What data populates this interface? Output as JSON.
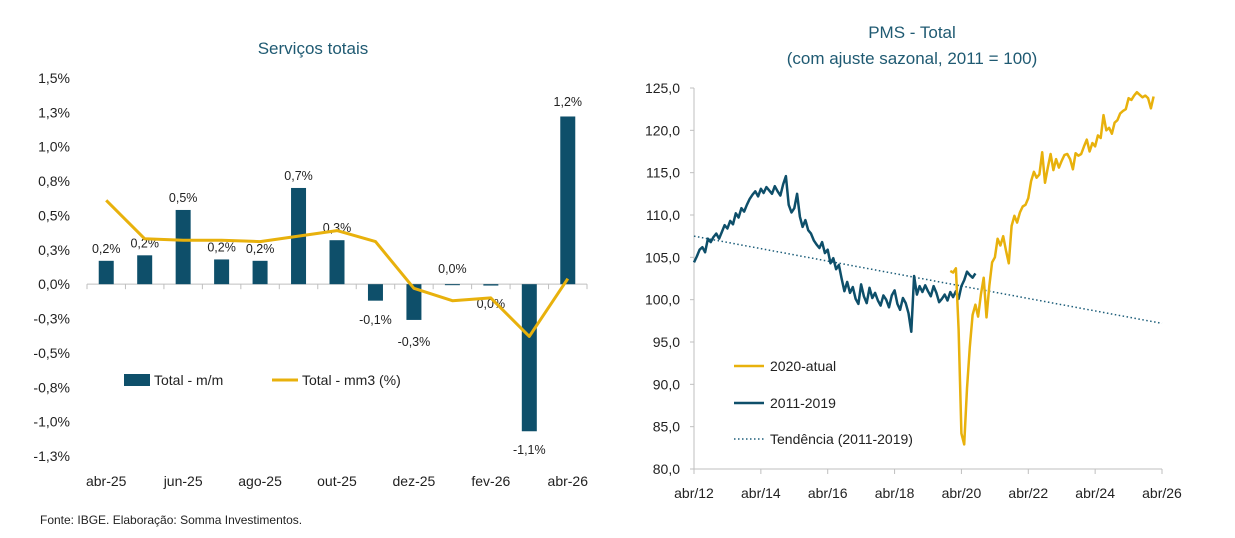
{
  "source": "Fonte: IBGE. Elaboração: Somma Investimentos.",
  "colors": {
    "teal": "#0e4f6a",
    "gold": "#e8b10c",
    "title": "#1f5a72",
    "trend": "#1d5e7a"
  },
  "chart_data": [
    {
      "type": "bar",
      "title": "Serviços totais",
      "categories": [
        "abr-25",
        "mai-25",
        "jun-25",
        "jul-25",
        "ago-25",
        "set-25",
        "out-25",
        "nov-25",
        "dez-25",
        "jan-26",
        "fev-26",
        "mar-26",
        "abr-26"
      ],
      "x_tick_labels": [
        "abr-25",
        "jun-25",
        "ago-25",
        "out-25",
        "dez-25",
        "fev-26",
        "abr-26"
      ],
      "y_tick_labels": [
        "1,5%",
        "1,3%",
        "1,0%",
        "0,8%",
        "0,5%",
        "0,3%",
        "0,0%",
        "-0,3%",
        "-0,5%",
        "-0,8%",
        "-1,0%",
        "-1,3%"
      ],
      "ylim": [
        -1.25,
        1.5
      ],
      "series": [
        {
          "name": "Total - m/m",
          "kind": "bar",
          "values": [
            0.17,
            0.21,
            0.54,
            0.18,
            0.17,
            0.7,
            0.32,
            -0.12,
            -0.26,
            0.0,
            -0.01,
            -1.07,
            1.22
          ],
          "labels": [
            "0,2%",
            "0,2%",
            "0,5%",
            "0,2%",
            "0,2%",
            "0,7%",
            "0,3%",
            "-0,1%",
            "-0,3%",
            "0,0%",
            "0,0%",
            "-1,1%",
            "1,2%"
          ]
        },
        {
          "name": "Total - mm3 (%)",
          "kind": "line",
          "values": [
            0.61,
            0.33,
            0.32,
            0.32,
            0.31,
            0.35,
            0.39,
            0.31,
            -0.03,
            -0.12,
            -0.1,
            -0.38,
            0.04
          ]
        }
      ]
    },
    {
      "type": "line",
      "title": "PMS - Total",
      "subtitle": "(com ajuste sazonal, 2011 = 100)",
      "x_tick_labels": [
        "abr/12",
        "abr/14",
        "abr/16",
        "abr/18",
        "abr/20",
        "abr/22",
        "abr/24",
        "abr/26"
      ],
      "y_tick_labels": [
        "80,0",
        "85,0",
        "90,0",
        "95,0",
        "100,0",
        "105,0",
        "110,0",
        "115,0",
        "120,0",
        "125,0"
      ],
      "ylim": [
        80,
        125
      ],
      "x_start": "abr/12",
      "x_end": "abr/26",
      "series": [
        {
          "name": "2011-2019",
          "start": "abr/12",
          "values": [
            104.4,
            105.1,
            105.9,
            106.2,
            105.6,
            107.2,
            106.8,
            107.4,
            107.8,
            107.2,
            108.0,
            108.8,
            108.4,
            109.3,
            108.9,
            110.2,
            109.7,
            110.8,
            110.4,
            111.2,
            111.9,
            112.4,
            112.8,
            112.2,
            113.1,
            112.6,
            113.3,
            112.9,
            112.5,
            113.4,
            112.8,
            112.3,
            113.6,
            114.6,
            111.2,
            110.3,
            110.8,
            112.5,
            109.8,
            108.6,
            109.4,
            108.2,
            107.8,
            107.0,
            106.5,
            106.1,
            106.8,
            105.5,
            105.9,
            104.3,
            104.9,
            103.6,
            104.1,
            102.5,
            101.0,
            102.1,
            100.8,
            101.5,
            100.1,
            99.5,
            101.8,
            100.4,
            99.6,
            101.4,
            100.2,
            100.8,
            99.9,
            99.3,
            100.5,
            100.0,
            99.1,
            100.5,
            101.1,
            99.5,
            98.8,
            100.2,
            99.6,
            98.4,
            96.2,
            102.8,
            100.6,
            101.6,
            100.9,
            101.7,
            101.0,
            100.4,
            101.6,
            100.8,
            99.7,
            100.1,
            100.6,
            99.9,
            100.9,
            100.3,
            101.0,
            100.1,
            101.6,
            102.3,
            103.3,
            102.9,
            102.6,
            103.1
          ]
        },
        {
          "name": "2020-atual",
          "start": "dez/19",
          "values": [
            103.4,
            103.2,
            103.7,
            96.5,
            84.2,
            82.9,
            89.5,
            94.4,
            98.2,
            99.4,
            98.0,
            100.6,
            102.6,
            97.9,
            101.6,
            104.4,
            105.0,
            107.2,
            106.4,
            107.5,
            105.8,
            104.3,
            108.7,
            109.9,
            109.1,
            110.3,
            111.0,
            111.2,
            112.0,
            114.0,
            115.1,
            114.4,
            114.8,
            117.4,
            113.8,
            115.6,
            117.2,
            115.3,
            116.6,
            115.6,
            116.4,
            117.1,
            117.2,
            116.6,
            115.4,
            117.3,
            117.0,
            117.2,
            118.1,
            118.9,
            117.5,
            118.5,
            118.1,
            119.4,
            119.1,
            121.8,
            120.0,
            120.3,
            119.6,
            120.9,
            121.2,
            122.0,
            122.3,
            122.5,
            123.8,
            123.6,
            124.1,
            124.5,
            124.2,
            123.9,
            124.1,
            123.8,
            122.6,
            124.0
          ]
        },
        {
          "name": "Tendência (2011-2019)",
          "style": "dotted",
          "start_value": 107.5,
          "end_value": 97.2
        }
      ]
    }
  ]
}
